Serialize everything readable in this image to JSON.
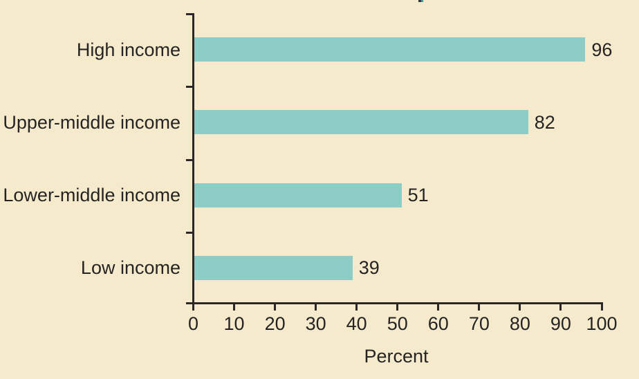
{
  "colors": {
    "background": "#f5ebcc",
    "bar": "#8ecdc5",
    "axis": "#2b2728",
    "text": "#262324"
  },
  "chart_data": {
    "type": "bar",
    "orientation": "horizontal",
    "categories": [
      "High income",
      "Upper-middle income",
      "Lower-middle income",
      "Low income"
    ],
    "values": [
      96,
      82,
      51,
      39
    ],
    "value_labels": [
      "96",
      "82",
      "51",
      "39"
    ],
    "xlabel": "Percent",
    "xlim": [
      0,
      100
    ],
    "x_ticks": [
      0,
      10,
      20,
      30,
      40,
      50,
      60,
      70,
      80,
      90,
      100
    ],
    "grid": false,
    "legend": false,
    "value_labels_position": "right-of-bar",
    "category_labels_position": "left-of-axis"
  }
}
